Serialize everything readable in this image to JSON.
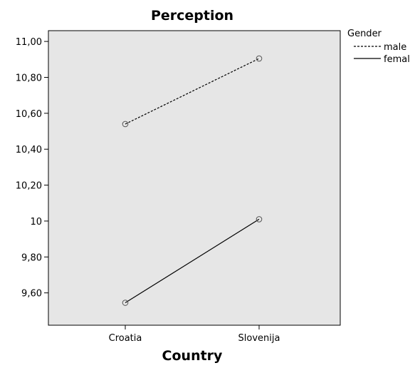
{
  "chart_data": {
    "type": "line",
    "title": "Perception",
    "xlabel": "Country",
    "ylabel": "",
    "categories": [
      "Croatia",
      "Slovenija"
    ],
    "y_ticks": [
      "9,60",
      "9,80",
      "10",
      "10,20",
      "10,40",
      "10,60",
      "10,80",
      "11,00"
    ],
    "ylim": [
      9.42,
      11.06
    ],
    "grid": false,
    "legend": {
      "title": "Gender",
      "position": "right"
    },
    "series": [
      {
        "name": "male",
        "values": [
          10.54,
          10.905
        ],
        "line_style": "dashed"
      },
      {
        "name": "female",
        "values": [
          9.545,
          10.01
        ],
        "line_style": "solid"
      }
    ],
    "colors": {
      "plot_background": "#e6e6e6",
      "line": "#000000",
      "marker": "#555555"
    }
  }
}
